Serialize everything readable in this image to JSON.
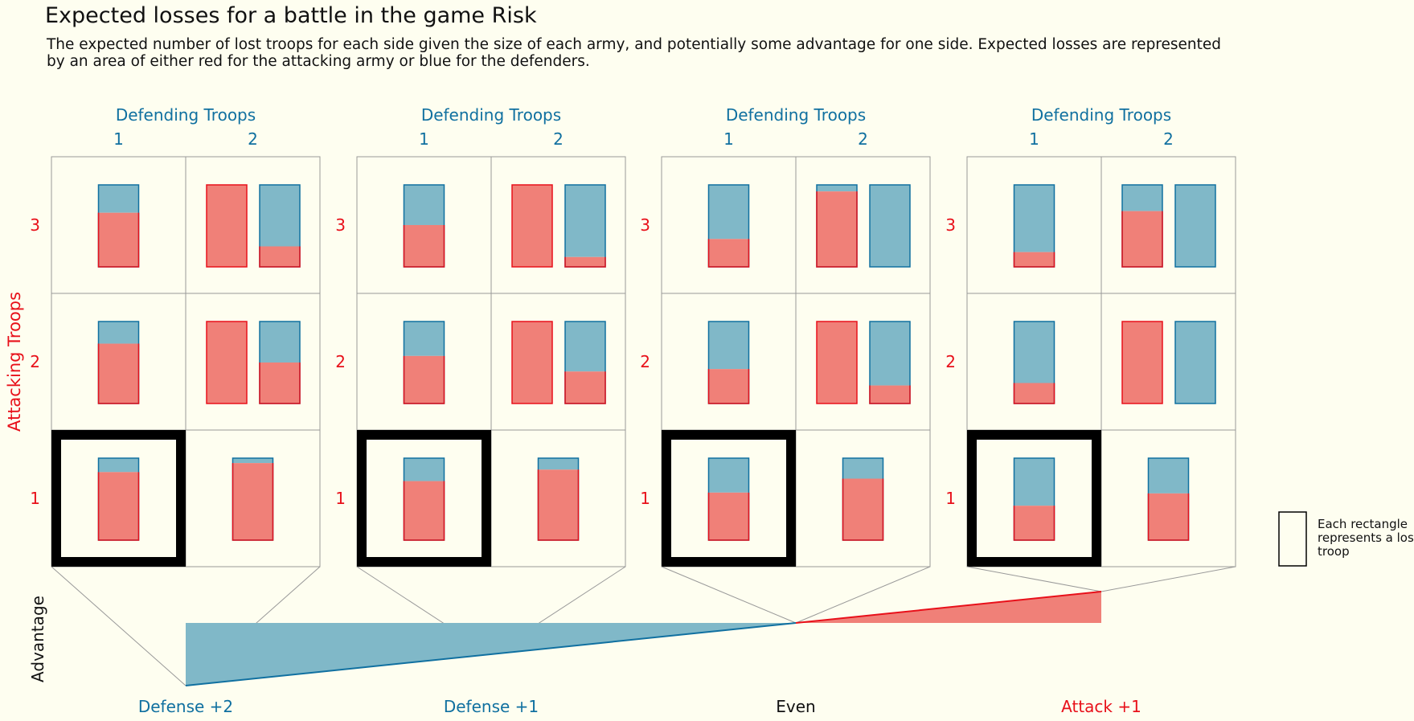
{
  "title": "Expected losses for a battle in the game Risk",
  "subtitle": "The expected number of lost troops for each side given the size of each army, and potentially some advantage for one side. Expected losses are represented by an area of either red for the attacking army or blue for the defenders.",
  "colors": {
    "attack_fill": "#f08078",
    "attack_stroke": "#e8101a",
    "defend_fill": "#80b8c8",
    "defend_stroke": "#1070a0",
    "grid": "#999999",
    "background": "#fefef0",
    "neutral_text": "#111111"
  },
  "chart_data": {
    "type": "heatmap",
    "column_axis_label": "Defending Troops",
    "row_axis_label": "Attacking Troops",
    "columns": [
      "1",
      "2"
    ],
    "rows": [
      "3",
      "2",
      "1"
    ],
    "highlighted_cell": {
      "attack": 1,
      "defend": 1
    },
    "advantage_axis_label": "Advantage",
    "legend_text": "Each rectangle represents a lost troop",
    "panels": [
      {
        "advantage_label": "Defense +2",
        "advantage_value": -2,
        "advantage_side": "defense",
        "cells": [
          {
            "attack": 3,
            "defend": 1,
            "attacker_loss": 0.66,
            "defender_loss": 0.34
          },
          {
            "attack": 3,
            "defend": 2,
            "attacker_loss": 1.25,
            "defender_loss": 0.75
          },
          {
            "attack": 2,
            "defend": 1,
            "attacker_loss": 0.73,
            "defender_loss": 0.27
          },
          {
            "attack": 2,
            "defend": 2,
            "attacker_loss": 1.5,
            "defender_loss": 0.5
          },
          {
            "attack": 1,
            "defend": 1,
            "attacker_loss": 0.83,
            "defender_loss": 0.17
          },
          {
            "attack": 1,
            "defend": 2,
            "attacker_loss": 0.94,
            "defender_loss": 0.06
          }
        ]
      },
      {
        "advantage_label": "Defense +1",
        "advantage_value": -1,
        "advantage_side": "defense",
        "cells": [
          {
            "attack": 3,
            "defend": 1,
            "attacker_loss": 0.51,
            "defender_loss": 0.49
          },
          {
            "attack": 3,
            "defend": 2,
            "attacker_loss": 1.12,
            "defender_loss": 0.88
          },
          {
            "attack": 2,
            "defend": 1,
            "attacker_loss": 0.58,
            "defender_loss": 0.42
          },
          {
            "attack": 2,
            "defend": 2,
            "attacker_loss": 1.39,
            "defender_loss": 0.61
          },
          {
            "attack": 1,
            "defend": 1,
            "attacker_loss": 0.72,
            "defender_loss": 0.28
          },
          {
            "attack": 1,
            "defend": 2,
            "attacker_loss": 0.86,
            "defender_loss": 0.14
          }
        ]
      },
      {
        "advantage_label": "Even",
        "advantage_value": 0,
        "advantage_side": "even",
        "cells": [
          {
            "attack": 3,
            "defend": 1,
            "attacker_loss": 0.34,
            "defender_loss": 0.66
          },
          {
            "attack": 3,
            "defend": 2,
            "attacker_loss": 0.92,
            "defender_loss": 1.08
          },
          {
            "attack": 2,
            "defend": 1,
            "attacker_loss": 0.42,
            "defender_loss": 0.58
          },
          {
            "attack": 2,
            "defend": 2,
            "attacker_loss": 1.22,
            "defender_loss": 0.78
          },
          {
            "attack": 1,
            "defend": 1,
            "attacker_loss": 0.58,
            "defender_loss": 0.42
          },
          {
            "attack": 1,
            "defend": 2,
            "attacker_loss": 0.75,
            "defender_loss": 0.25
          }
        ]
      },
      {
        "advantage_label": "Attack +1",
        "advantage_value": 1,
        "advantage_side": "attack",
        "cells": [
          {
            "attack": 3,
            "defend": 1,
            "attacker_loss": 0.18,
            "defender_loss": 0.82
          },
          {
            "attack": 3,
            "defend": 2,
            "attacker_loss": 0.68,
            "defender_loss": 1.32
          },
          {
            "attack": 2,
            "defend": 1,
            "attacker_loss": 0.25,
            "defender_loss": 0.75
          },
          {
            "attack": 2,
            "defend": 2,
            "attacker_loss": 1.0,
            "defender_loss": 1.0
          },
          {
            "attack": 1,
            "defend": 1,
            "attacker_loss": 0.42,
            "defender_loss": 0.58
          },
          {
            "attack": 1,
            "defend": 2,
            "attacker_loss": 0.57,
            "defender_loss": 0.43
          }
        ]
      }
    ]
  }
}
